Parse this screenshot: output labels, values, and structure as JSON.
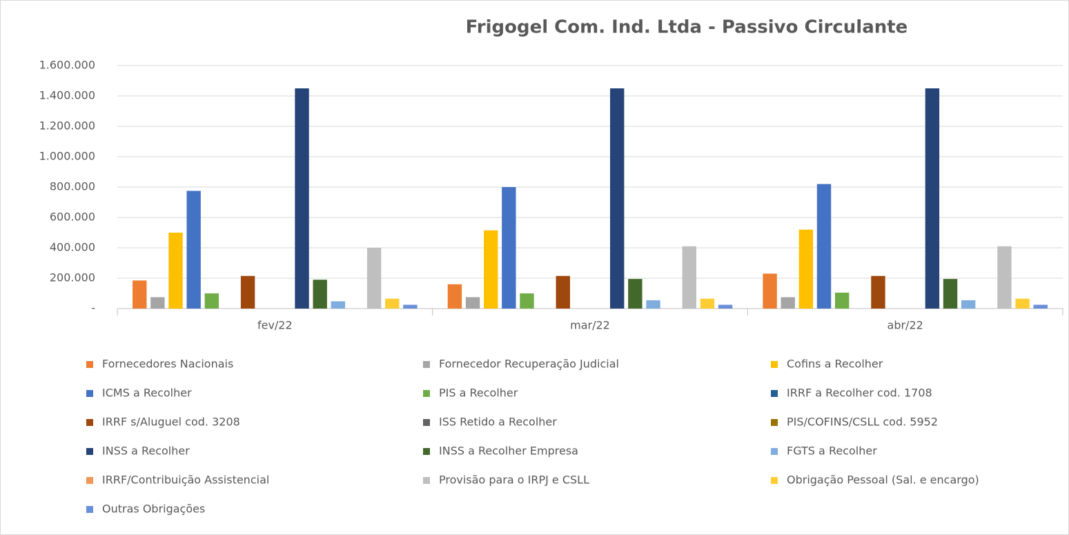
{
  "chart_data": {
    "type": "bar",
    "title": "Frigogel Com. Ind. Ltda - Passivo Circulante",
    "categories": [
      "fev/22",
      "mar/22",
      "abr/22"
    ],
    "ylim": [
      0,
      1600000
    ],
    "yticks": [
      {
        "value": 0,
        "label": "-"
      },
      {
        "value": 200000,
        "label": "200.000"
      },
      {
        "value": 400000,
        "label": "400.000"
      },
      {
        "value": 600000,
        "label": "600.000"
      },
      {
        "value": 800000,
        "label": "800.000"
      },
      {
        "value": 1000000,
        "label": "1.000.000"
      },
      {
        "value": 1200000,
        "label": "1.200.000"
      },
      {
        "value": 1400000,
        "label": "1.400.000"
      },
      {
        "value": 1600000,
        "label": "1.600.000"
      }
    ],
    "grid": true,
    "legend": "bottom",
    "series": [
      {
        "name": "Fornecedores Nacionais",
        "color": "#ED7D31",
        "values": [
          185000,
          160000,
          230000
        ]
      },
      {
        "name": "Fornecedor Recuperação Judicial",
        "color": "#A5A5A5",
        "values": [
          75000,
          75000,
          75000
        ]
      },
      {
        "name": "Cofins a Recolher",
        "color": "#FFC000",
        "values": [
          500000,
          515000,
          520000
        ]
      },
      {
        "name": "ICMS a Recolher",
        "color": "#4472C4",
        "values": [
          775000,
          800000,
          820000
        ]
      },
      {
        "name": "PIS a Recolher",
        "color": "#70AD47",
        "values": [
          100000,
          100000,
          105000
        ]
      },
      {
        "name": "IRRF a Recolher cod. 1708",
        "color": "#255E91",
        "values": [
          0,
          0,
          0
        ]
      },
      {
        "name": "IRRF s/Aluguel cod. 3208",
        "color": "#9E480E",
        "values": [
          215000,
          215000,
          215000
        ]
      },
      {
        "name": "ISS Retido a Recolher",
        "color": "#636363",
        "values": [
          0,
          0,
          0
        ]
      },
      {
        "name": "PIS/COFINS/CSLL cod. 5952",
        "color": "#997300",
        "values": [
          0,
          0,
          0
        ]
      },
      {
        "name": "INSS a Recolher",
        "color": "#264478",
        "values": [
          1450000,
          1450000,
          1450000
        ]
      },
      {
        "name": "INSS a Recolher Empresa",
        "color": "#43682B",
        "values": [
          190000,
          195000,
          195000
        ]
      },
      {
        "name": "FGTS a Recolher",
        "color": "#7FAEDE",
        "values": [
          48000,
          55000,
          55000
        ]
      },
      {
        "name": "IRRF/Contribuição Assistencial",
        "color": "#F1975A",
        "values": [
          0,
          0,
          0
        ]
      },
      {
        "name": "Provisão para o IRPJ e CSLL",
        "color": "#BFBFBF",
        "values": [
          400000,
          410000,
          410000
        ]
      },
      {
        "name": "Obrigação Pessoal (Sal. e encargo)",
        "color": "#FFCD33",
        "values": [
          65000,
          65000,
          65000
        ]
      },
      {
        "name": "Outras Obrigações",
        "color": "#6A8FD8",
        "values": [
          25000,
          25000,
          25000
        ]
      }
    ]
  }
}
